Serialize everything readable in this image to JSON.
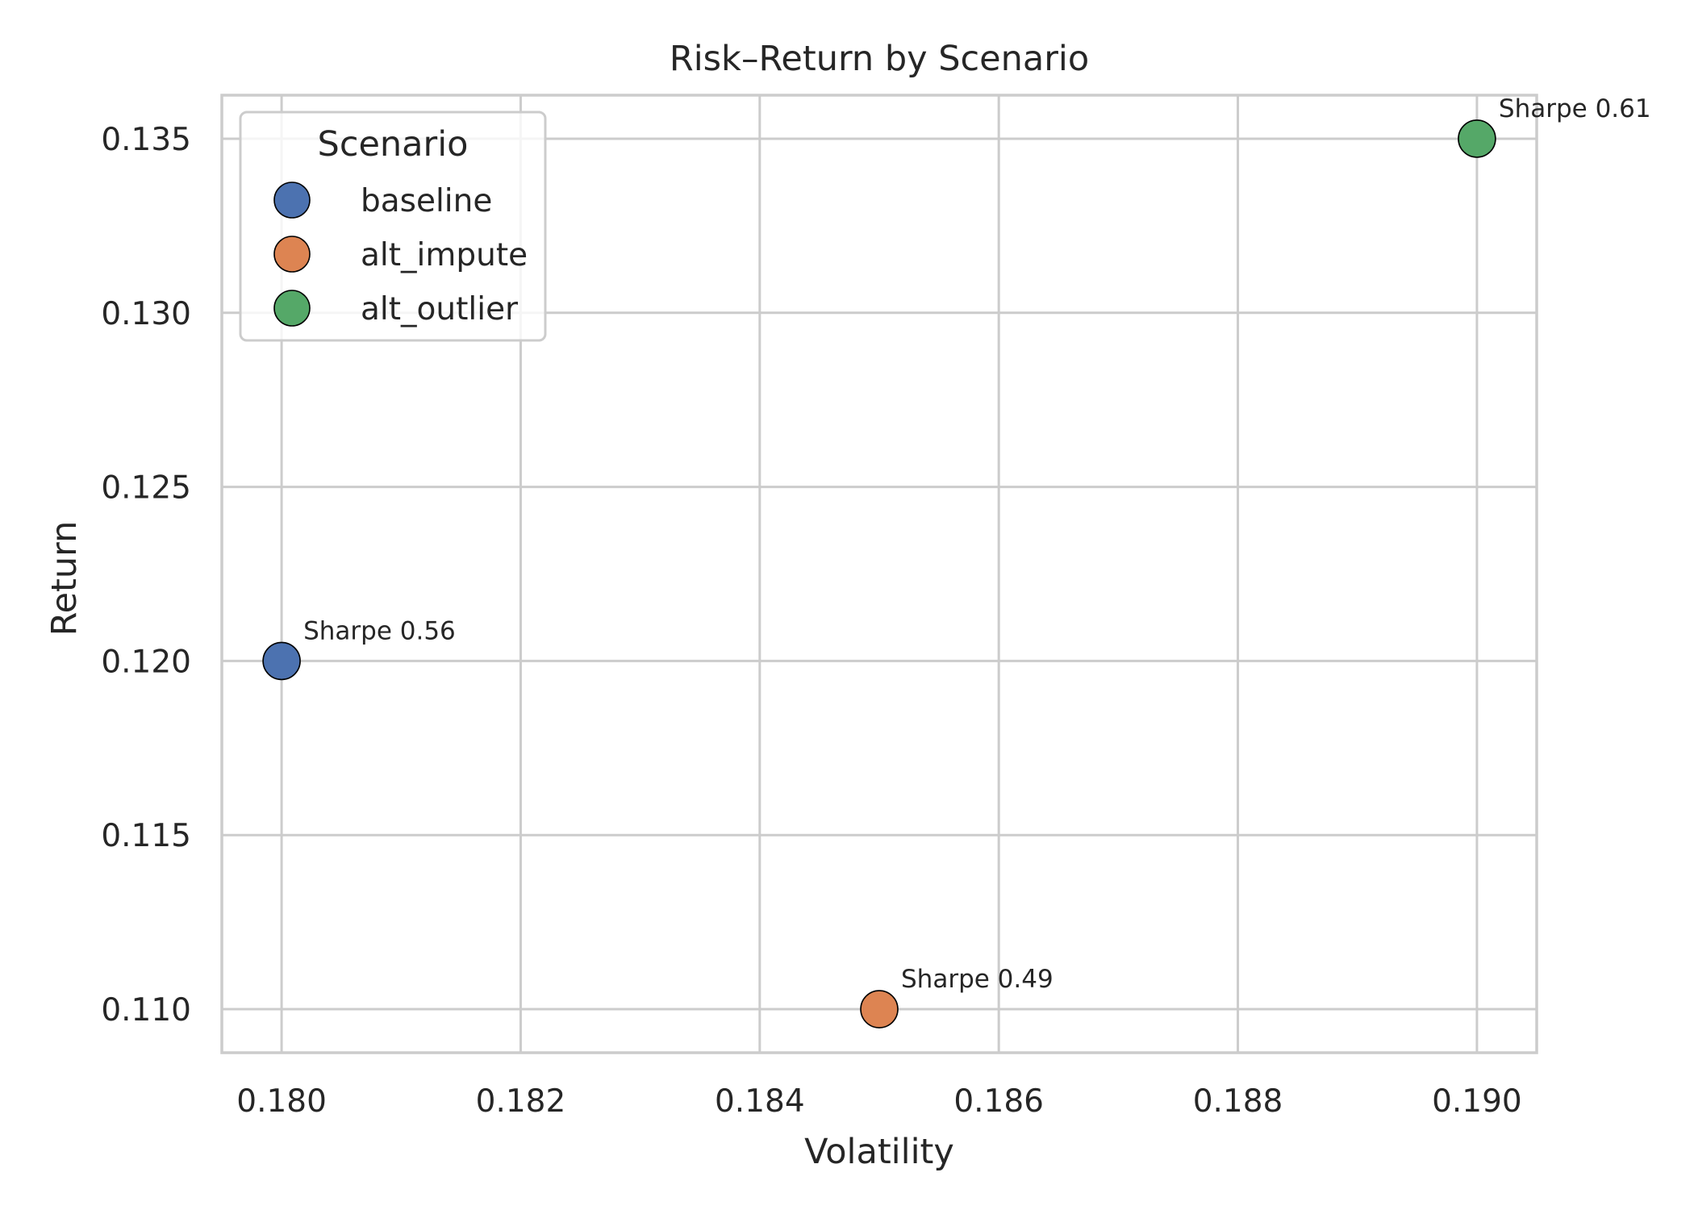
{
  "chart_data": {
    "type": "scatter",
    "title": "Risk–Return by Scenario",
    "xlabel": "Volatility",
    "ylabel": "Return",
    "xlim": [
      0.1795,
      0.1905
    ],
    "ylim": [
      0.10875,
      0.13625
    ],
    "x_ticks": [
      0.18,
      0.182,
      0.184,
      0.186,
      0.188,
      0.19
    ],
    "x_tick_labels": [
      "0.180",
      "0.182",
      "0.184",
      "0.186",
      "0.188",
      "0.190"
    ],
    "y_ticks": [
      0.11,
      0.115,
      0.12,
      0.125,
      0.13,
      0.135
    ],
    "y_tick_labels": [
      "0.110",
      "0.115",
      "0.120",
      "0.125",
      "0.130",
      "0.135"
    ],
    "grid": true,
    "legend": {
      "title": "Scenario",
      "placement": "top-left"
    },
    "series": [
      {
        "name": "baseline",
        "color": "#4c72b0",
        "x": 0.18,
        "y": 0.12,
        "annotation": "Sharpe 0.56"
      },
      {
        "name": "alt_impute",
        "color": "#dd8452",
        "x": 0.185,
        "y": 0.11,
        "annotation": "Sharpe 0.49"
      },
      {
        "name": "alt_outlier",
        "color": "#55a868",
        "x": 0.19,
        "y": 0.135,
        "annotation": "Sharpe 0.61"
      }
    ]
  }
}
